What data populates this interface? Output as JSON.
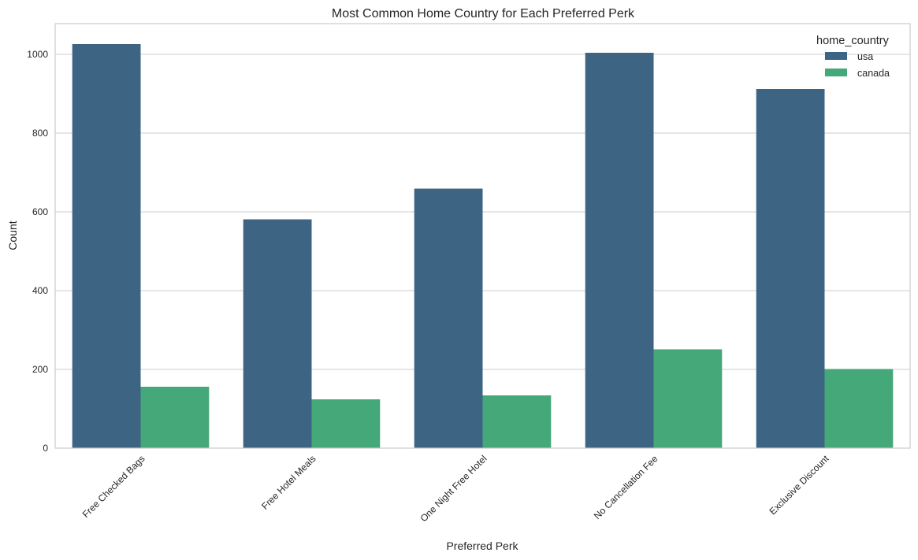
{
  "chart_data": {
    "type": "bar",
    "title": "Most Common Home Country for Each Preferred Perk",
    "xlabel": "Preferred Perk",
    "ylabel": "Count",
    "categories": [
      "Free Checked Bags",
      "Free Hotel Meals",
      "One Night Free Hotel",
      "No Cancellation Fee",
      "Exclusive Discount"
    ],
    "series": [
      {
        "name": "usa",
        "color": "#3e6483",
        "values": [
          1026,
          581,
          659,
          1004,
          912
        ]
      },
      {
        "name": "canada",
        "color": "#45a878",
        "values": [
          156,
          124,
          134,
          251,
          201
        ]
      }
    ],
    "ylim": [
      0,
      1078
    ],
    "yticks": [
      0,
      200,
      400,
      600,
      800,
      1000
    ],
    "legend": {
      "title": "home_country",
      "position": "top-right"
    },
    "grid": "horizontal"
  }
}
